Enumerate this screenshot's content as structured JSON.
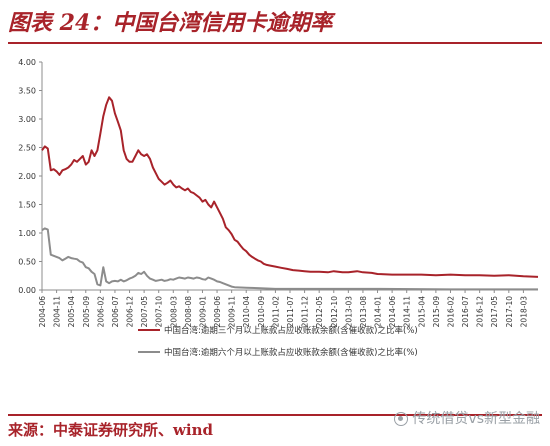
{
  "header": {
    "title": "图表 24：中国台湾信用卡逾期率"
  },
  "footer": {
    "source": "来源：中泰证券研究所、wind",
    "watermark": "传统借贷vs新型金融"
  },
  "colors": {
    "accent": "#a8232a",
    "series1": "#a8232a",
    "series2": "#8c8c8c",
    "axis": "#8c8c8c"
  },
  "icons": {
    "watermark": "wechat-icon"
  },
  "chart_data": {
    "type": "line",
    "ylim": [
      0,
      4
    ],
    "yticks": [
      "0.00",
      "0.50",
      "1.00",
      "1.50",
      "2.00",
      "2.50",
      "3.00",
      "3.50",
      "4.00"
    ],
    "xlim": [
      "2004-06",
      "2018-08"
    ],
    "xticks": [
      "2004-06",
      "2004-11",
      "2005-04",
      "2005-09",
      "2006-02",
      "2006-07",
      "2006-12",
      "2007-05",
      "2007-10",
      "2008-03",
      "2008-08",
      "2009-01",
      "2009-06",
      "2009-11",
      "2010-04",
      "2010-09",
      "2011-02",
      "2011-07",
      "2011-12",
      "2012-05",
      "2012-10",
      "2013-03",
      "2013-08",
      "2014-01",
      "2014-06",
      "2014-11",
      "2015-04",
      "2015-09",
      "2016-02",
      "2016-07",
      "2016-12",
      "2017-05",
      "2017-10",
      "2018-03"
    ],
    "legend_position": "bottom",
    "grid": false,
    "series": [
      {
        "name": "中国台湾:逾期三个月以上账款占应收账款余额(含催收款)之比率(%)",
        "points": [
          [
            "2004-06",
            2.45
          ],
          [
            "2004-07",
            2.52
          ],
          [
            "2004-08",
            2.48
          ],
          [
            "2004-09",
            2.1
          ],
          [
            "2004-10",
            2.12
          ],
          [
            "2004-11",
            2.08
          ],
          [
            "2004-12",
            2.02
          ],
          [
            "2005-01",
            2.1
          ],
          [
            "2005-02",
            2.12
          ],
          [
            "2005-03",
            2.15
          ],
          [
            "2005-04",
            2.2
          ],
          [
            "2005-05",
            2.28
          ],
          [
            "2005-06",
            2.25
          ],
          [
            "2005-07",
            2.3
          ],
          [
            "2005-08",
            2.35
          ],
          [
            "2005-09",
            2.2
          ],
          [
            "2005-10",
            2.25
          ],
          [
            "2005-11",
            2.45
          ],
          [
            "2005-12",
            2.35
          ],
          [
            "2006-01",
            2.45
          ],
          [
            "2006-02",
            2.75
          ],
          [
            "2006-03",
            3.05
          ],
          [
            "2006-04",
            3.25
          ],
          [
            "2006-05",
            3.38
          ],
          [
            "2006-06",
            3.32
          ],
          [
            "2006-07",
            3.1
          ],
          [
            "2006-08",
            2.95
          ],
          [
            "2006-09",
            2.8
          ],
          [
            "2006-10",
            2.45
          ],
          [
            "2006-11",
            2.3
          ],
          [
            "2006-12",
            2.25
          ],
          [
            "2007-01",
            2.25
          ],
          [
            "2007-02",
            2.35
          ],
          [
            "2007-03",
            2.45
          ],
          [
            "2007-04",
            2.38
          ],
          [
            "2007-05",
            2.35
          ],
          [
            "2007-06",
            2.38
          ],
          [
            "2007-07",
            2.3
          ],
          [
            "2007-08",
            2.15
          ],
          [
            "2007-09",
            2.05
          ],
          [
            "2007-10",
            1.95
          ],
          [
            "2007-11",
            1.9
          ],
          [
            "2007-12",
            1.85
          ],
          [
            "2008-01",
            1.88
          ],
          [
            "2008-02",
            1.92
          ],
          [
            "2008-03",
            1.85
          ],
          [
            "2008-04",
            1.8
          ],
          [
            "2008-05",
            1.82
          ],
          [
            "2008-06",
            1.78
          ],
          [
            "2008-07",
            1.75
          ],
          [
            "2008-08",
            1.78
          ],
          [
            "2008-09",
            1.72
          ],
          [
            "2008-10",
            1.7
          ],
          [
            "2008-11",
            1.66
          ],
          [
            "2008-12",
            1.62
          ],
          [
            "2009-01",
            1.55
          ],
          [
            "2009-02",
            1.58
          ],
          [
            "2009-03",
            1.5
          ],
          [
            "2009-04",
            1.45
          ],
          [
            "2009-05",
            1.55
          ],
          [
            "2009-06",
            1.45
          ],
          [
            "2009-07",
            1.35
          ],
          [
            "2009-08",
            1.25
          ],
          [
            "2009-09",
            1.1
          ],
          [
            "2009-10",
            1.05
          ],
          [
            "2009-11",
            0.98
          ],
          [
            "2009-12",
            0.88
          ],
          [
            "2010-01",
            0.85
          ],
          [
            "2010-02",
            0.78
          ],
          [
            "2010-03",
            0.72
          ],
          [
            "2010-04",
            0.68
          ],
          [
            "2010-05",
            0.62
          ],
          [
            "2010-06",
            0.58
          ],
          [
            "2010-07",
            0.55
          ],
          [
            "2010-08",
            0.52
          ],
          [
            "2010-09",
            0.5
          ],
          [
            "2010-10",
            0.46
          ],
          [
            "2010-11",
            0.44
          ],
          [
            "2010-12",
            0.43
          ],
          [
            "2011-02",
            0.41
          ],
          [
            "2011-04",
            0.39
          ],
          [
            "2011-06",
            0.37
          ],
          [
            "2011-08",
            0.35
          ],
          [
            "2011-10",
            0.34
          ],
          [
            "2011-12",
            0.33
          ],
          [
            "2012-02",
            0.32
          ],
          [
            "2012-05",
            0.32
          ],
          [
            "2012-08",
            0.31
          ],
          [
            "2012-10",
            0.33
          ],
          [
            "2013-01",
            0.31
          ],
          [
            "2013-03",
            0.31
          ],
          [
            "2013-06",
            0.33
          ],
          [
            "2013-08",
            0.31
          ],
          [
            "2013-11",
            0.3
          ],
          [
            "2014-01",
            0.28
          ],
          [
            "2014-06",
            0.27
          ],
          [
            "2014-11",
            0.27
          ],
          [
            "2015-04",
            0.27
          ],
          [
            "2015-09",
            0.26
          ],
          [
            "2016-02",
            0.27
          ],
          [
            "2016-07",
            0.26
          ],
          [
            "2016-12",
            0.26
          ],
          [
            "2017-05",
            0.25
          ],
          [
            "2017-10",
            0.26
          ],
          [
            "2018-03",
            0.24
          ],
          [
            "2018-08",
            0.23
          ]
        ]
      },
      {
        "name": "中国台湾:逾期六个月以上账款占应收账款余额(含催收款)之比率(%)",
        "points": [
          [
            "2004-06",
            1.05
          ],
          [
            "2004-07",
            1.08
          ],
          [
            "2004-08",
            1.06
          ],
          [
            "2004-09",
            0.62
          ],
          [
            "2004-10",
            0.6
          ],
          [
            "2004-11",
            0.58
          ],
          [
            "2004-12",
            0.56
          ],
          [
            "2005-01",
            0.52
          ],
          [
            "2005-02",
            0.55
          ],
          [
            "2005-03",
            0.58
          ],
          [
            "2005-04",
            0.56
          ],
          [
            "2005-05",
            0.55
          ],
          [
            "2005-06",
            0.54
          ],
          [
            "2005-07",
            0.5
          ],
          [
            "2005-08",
            0.48
          ],
          [
            "2005-09",
            0.4
          ],
          [
            "2005-10",
            0.38
          ],
          [
            "2005-11",
            0.32
          ],
          [
            "2005-12",
            0.28
          ],
          [
            "2006-01",
            0.1
          ],
          [
            "2006-02",
            0.08
          ],
          [
            "2006-03",
            0.4
          ],
          [
            "2006-04",
            0.15
          ],
          [
            "2006-05",
            0.12
          ],
          [
            "2006-06",
            0.15
          ],
          [
            "2006-07",
            0.16
          ],
          [
            "2006-08",
            0.15
          ],
          [
            "2006-09",
            0.18
          ],
          [
            "2006-10",
            0.15
          ],
          [
            "2006-11",
            0.17
          ],
          [
            "2006-12",
            0.2
          ],
          [
            "2007-01",
            0.22
          ],
          [
            "2007-02",
            0.25
          ],
          [
            "2007-03",
            0.3
          ],
          [
            "2007-04",
            0.28
          ],
          [
            "2007-05",
            0.32
          ],
          [
            "2007-06",
            0.25
          ],
          [
            "2007-07",
            0.2
          ],
          [
            "2007-08",
            0.18
          ],
          [
            "2007-09",
            0.16
          ],
          [
            "2007-10",
            0.17
          ],
          [
            "2007-11",
            0.18
          ],
          [
            "2007-12",
            0.16
          ],
          [
            "2008-01",
            0.17
          ],
          [
            "2008-02",
            0.19
          ],
          [
            "2008-03",
            0.18
          ],
          [
            "2008-04",
            0.2
          ],
          [
            "2008-05",
            0.22
          ],
          [
            "2008-06",
            0.21
          ],
          [
            "2008-07",
            0.2
          ],
          [
            "2008-08",
            0.22
          ],
          [
            "2008-09",
            0.21
          ],
          [
            "2008-10",
            0.2
          ],
          [
            "2008-11",
            0.22
          ],
          [
            "2008-12",
            0.21
          ],
          [
            "2009-01",
            0.19
          ],
          [
            "2009-02",
            0.18
          ],
          [
            "2009-03",
            0.22
          ],
          [
            "2009-04",
            0.2
          ],
          [
            "2009-05",
            0.18
          ],
          [
            "2009-06",
            0.15
          ],
          [
            "2009-07",
            0.14
          ],
          [
            "2009-08",
            0.12
          ],
          [
            "2009-09",
            0.1
          ],
          [
            "2009-10",
            0.08
          ],
          [
            "2009-11",
            0.06
          ],
          [
            "2009-12",
            0.05
          ],
          [
            "2010-04",
            0.04
          ],
          [
            "2010-09",
            0.03
          ],
          [
            "2011-02",
            0.02
          ],
          [
            "2012-05",
            0.02
          ],
          [
            "2014-01",
            0.02
          ],
          [
            "2016-02",
            0.01
          ],
          [
            "2018-03",
            0.01
          ],
          [
            "2018-08",
            0.01
          ]
        ]
      }
    ]
  }
}
